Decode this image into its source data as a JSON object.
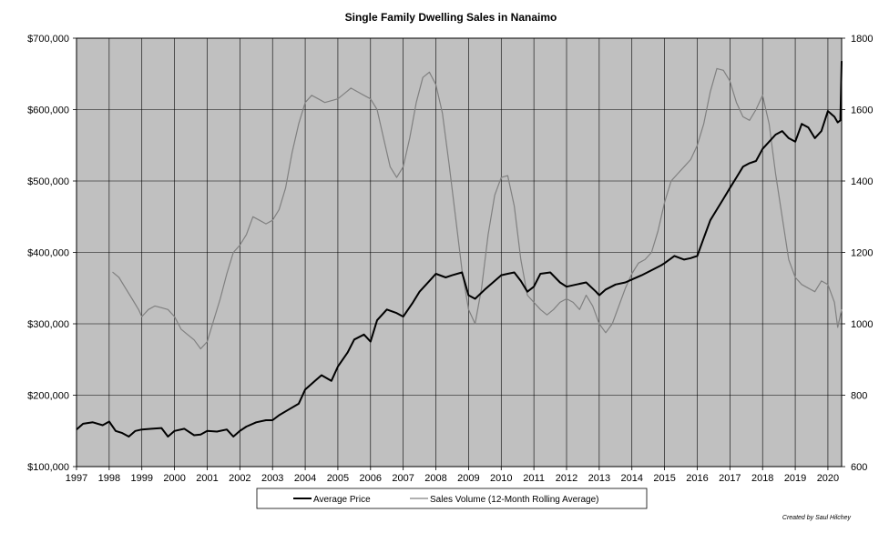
{
  "chart_data": {
    "type": "line",
    "title": "Single Family Dwelling Sales in Nanaimo",
    "credit": "Created by Saul Hilchey",
    "x_categories": [
      "1997",
      "1998",
      "1999",
      "2000",
      "2001",
      "2002",
      "2003",
      "2004",
      "2005",
      "2006",
      "2007",
      "2008",
      "2009",
      "2010",
      "2011",
      "2012",
      "2013",
      "2014",
      "2015",
      "2016",
      "2017",
      "2018",
      "2019",
      "2020"
    ],
    "x_range": [
      1997.0,
      2020.42
    ],
    "y_left": {
      "range": [
        100000,
        700000
      ],
      "ticks": [
        100000,
        200000,
        300000,
        400000,
        500000,
        600000,
        700000
      ],
      "tick_labels": [
        "$100,000",
        "$200,000",
        "$300,000",
        "$400,000",
        "$500,000",
        "$600,000",
        "$700,000"
      ]
    },
    "y_right": {
      "range": [
        600,
        1800
      ],
      "ticks": [
        600,
        800,
        1000,
        1200,
        1400,
        1600,
        1800
      ],
      "tick_labels": [
        "600",
        "800",
        "1000",
        "1200",
        "1400",
        "1600",
        "1800"
      ]
    },
    "grid": true,
    "plot_background": "#c0c0c0",
    "legend_placement": "bottom-center",
    "series": [
      {
        "name": "Average Price",
        "axis": "left",
        "color": "#000000",
        "points": [
          [
            1997.0,
            152000
          ],
          [
            1997.2,
            160000
          ],
          [
            1997.5,
            162000
          ],
          [
            1997.8,
            158000
          ],
          [
            1998.0,
            163000
          ],
          [
            1998.2,
            150000
          ],
          [
            1998.4,
            147000
          ],
          [
            1998.6,
            142000
          ],
          [
            1998.8,
            150000
          ],
          [
            1999.0,
            152000
          ],
          [
            1999.3,
            153000
          ],
          [
            1999.6,
            154000
          ],
          [
            1999.8,
            142000
          ],
          [
            2000.0,
            150000
          ],
          [
            2000.3,
            153000
          ],
          [
            2000.6,
            144000
          ],
          [
            2000.8,
            145000
          ],
          [
            2001.0,
            150000
          ],
          [
            2001.3,
            149000
          ],
          [
            2001.6,
            152000
          ],
          [
            2001.8,
            142000
          ],
          [
            2002.0,
            150000
          ],
          [
            2002.2,
            156000
          ],
          [
            2002.5,
            162000
          ],
          [
            2002.8,
            165000
          ],
          [
            2003.0,
            165000
          ],
          [
            2003.2,
            172000
          ],
          [
            2003.5,
            180000
          ],
          [
            2003.8,
            188000
          ],
          [
            2004.0,
            208000
          ],
          [
            2004.3,
            220000
          ],
          [
            2004.5,
            228000
          ],
          [
            2004.8,
            220000
          ],
          [
            2005.0,
            240000
          ],
          [
            2005.3,
            260000
          ],
          [
            2005.5,
            278000
          ],
          [
            2005.8,
            285000
          ],
          [
            2006.0,
            275000
          ],
          [
            2006.2,
            305000
          ],
          [
            2006.5,
            320000
          ],
          [
            2006.8,
            315000
          ],
          [
            2007.0,
            310000
          ],
          [
            2007.3,
            330000
          ],
          [
            2007.5,
            345000
          ],
          [
            2007.8,
            360000
          ],
          [
            2008.0,
            370000
          ],
          [
            2008.3,
            365000
          ],
          [
            2008.5,
            368000
          ],
          [
            2008.8,
            372000
          ],
          [
            2009.0,
            340000
          ],
          [
            2009.2,
            335000
          ],
          [
            2009.5,
            348000
          ],
          [
            2009.8,
            360000
          ],
          [
            2010.0,
            368000
          ],
          [
            2010.2,
            370000
          ],
          [
            2010.4,
            372000
          ],
          [
            2010.6,
            360000
          ],
          [
            2010.8,
            345000
          ],
          [
            2011.0,
            352000
          ],
          [
            2011.2,
            370000
          ],
          [
            2011.5,
            372000
          ],
          [
            2011.8,
            358000
          ],
          [
            2012.0,
            352000
          ],
          [
            2012.3,
            355000
          ],
          [
            2012.6,
            358000
          ],
          [
            2012.9,
            345000
          ],
          [
            2013.0,
            340000
          ],
          [
            2013.2,
            348000
          ],
          [
            2013.5,
            355000
          ],
          [
            2013.8,
            358000
          ],
          [
            2014.0,
            362000
          ],
          [
            2014.3,
            368000
          ],
          [
            2014.6,
            375000
          ],
          [
            2014.9,
            382000
          ],
          [
            2015.0,
            385000
          ],
          [
            2015.3,
            395000
          ],
          [
            2015.6,
            390000
          ],
          [
            2015.8,
            392000
          ],
          [
            2016.0,
            395000
          ],
          [
            2016.2,
            420000
          ],
          [
            2016.4,
            445000
          ],
          [
            2016.6,
            460000
          ],
          [
            2016.8,
            475000
          ],
          [
            2017.0,
            490000
          ],
          [
            2017.2,
            505000
          ],
          [
            2017.4,
            520000
          ],
          [
            2017.6,
            525000
          ],
          [
            2017.8,
            528000
          ],
          [
            2018.0,
            545000
          ],
          [
            2018.2,
            555000
          ],
          [
            2018.4,
            565000
          ],
          [
            2018.6,
            570000
          ],
          [
            2018.8,
            560000
          ],
          [
            2019.0,
            555000
          ],
          [
            2019.2,
            580000
          ],
          [
            2019.4,
            575000
          ],
          [
            2019.6,
            560000
          ],
          [
            2019.8,
            570000
          ],
          [
            2020.0,
            598000
          ],
          [
            2020.2,
            590000
          ],
          [
            2020.3,
            582000
          ],
          [
            2020.38,
            585000
          ],
          [
            2020.42,
            668000
          ]
        ]
      },
      {
        "name": "Sales Volume (12-Month Rolling Average)",
        "axis": "right",
        "color": "#808080",
        "points": [
          [
            1998.1,
            1145
          ],
          [
            1998.3,
            1130
          ],
          [
            1998.5,
            1100
          ],
          [
            1998.7,
            1070
          ],
          [
            1998.9,
            1040
          ],
          [
            1999.0,
            1020
          ],
          [
            1999.2,
            1040
          ],
          [
            1999.4,
            1050
          ],
          [
            1999.6,
            1045
          ],
          [
            1999.8,
            1040
          ],
          [
            2000.0,
            1020
          ],
          [
            2000.2,
            985
          ],
          [
            2000.4,
            970
          ],
          [
            2000.6,
            955
          ],
          [
            2000.8,
            930
          ],
          [
            2001.0,
            950
          ],
          [
            2001.2,
            1010
          ],
          [
            2001.4,
            1070
          ],
          [
            2001.6,
            1140
          ],
          [
            2001.8,
            1200
          ],
          [
            2002.0,
            1220
          ],
          [
            2002.2,
            1250
          ],
          [
            2002.4,
            1300
          ],
          [
            2002.6,
            1290
          ],
          [
            2002.8,
            1280
          ],
          [
            2003.0,
            1290
          ],
          [
            2003.2,
            1320
          ],
          [
            2003.4,
            1380
          ],
          [
            2003.6,
            1480
          ],
          [
            2003.8,
            1560
          ],
          [
            2004.0,
            1620
          ],
          [
            2004.2,
            1640
          ],
          [
            2004.4,
            1630
          ],
          [
            2004.6,
            1620
          ],
          [
            2004.8,
            1625
          ],
          [
            2005.0,
            1630
          ],
          [
            2005.2,
            1645
          ],
          [
            2005.4,
            1660
          ],
          [
            2005.6,
            1650
          ],
          [
            2005.8,
            1640
          ],
          [
            2006.0,
            1630
          ],
          [
            2006.2,
            1600
          ],
          [
            2006.4,
            1520
          ],
          [
            2006.6,
            1440
          ],
          [
            2006.8,
            1410
          ],
          [
            2007.0,
            1440
          ],
          [
            2007.2,
            1520
          ],
          [
            2007.4,
            1620
          ],
          [
            2007.6,
            1690
          ],
          [
            2007.8,
            1705
          ],
          [
            2008.0,
            1670
          ],
          [
            2008.2,
            1590
          ],
          [
            2008.4,
            1450
          ],
          [
            2008.6,
            1300
          ],
          [
            2008.8,
            1150
          ],
          [
            2009.0,
            1040
          ],
          [
            2009.2,
            1000
          ],
          [
            2009.4,
            1100
          ],
          [
            2009.6,
            1250
          ],
          [
            2009.8,
            1360
          ],
          [
            2010.0,
            1410
          ],
          [
            2010.2,
            1415
          ],
          [
            2010.4,
            1330
          ],
          [
            2010.6,
            1180
          ],
          [
            2010.8,
            1080
          ],
          [
            2011.0,
            1060
          ],
          [
            2011.2,
            1040
          ],
          [
            2011.4,
            1025
          ],
          [
            2011.6,
            1040
          ],
          [
            2011.8,
            1060
          ],
          [
            2012.0,
            1070
          ],
          [
            2012.2,
            1060
          ],
          [
            2012.4,
            1040
          ],
          [
            2012.6,
            1080
          ],
          [
            2012.8,
            1050
          ],
          [
            2013.0,
            1000
          ],
          [
            2013.2,
            975
          ],
          [
            2013.4,
            1000
          ],
          [
            2013.6,
            1050
          ],
          [
            2013.8,
            1100
          ],
          [
            2014.0,
            1140
          ],
          [
            2014.2,
            1170
          ],
          [
            2014.4,
            1180
          ],
          [
            2014.6,
            1200
          ],
          [
            2014.8,
            1260
          ],
          [
            2015.0,
            1340
          ],
          [
            2015.2,
            1400
          ],
          [
            2015.4,
            1420
          ],
          [
            2015.6,
            1440
          ],
          [
            2015.8,
            1460
          ],
          [
            2016.0,
            1500
          ],
          [
            2016.2,
            1560
          ],
          [
            2016.4,
            1650
          ],
          [
            2016.6,
            1715
          ],
          [
            2016.8,
            1710
          ],
          [
            2017.0,
            1680
          ],
          [
            2017.2,
            1620
          ],
          [
            2017.4,
            1580
          ],
          [
            2017.6,
            1570
          ],
          [
            2017.8,
            1600
          ],
          [
            2018.0,
            1640
          ],
          [
            2018.2,
            1560
          ],
          [
            2018.4,
            1420
          ],
          [
            2018.6,
            1300
          ],
          [
            2018.8,
            1180
          ],
          [
            2019.0,
            1130
          ],
          [
            2019.2,
            1110
          ],
          [
            2019.4,
            1100
          ],
          [
            2019.6,
            1090
          ],
          [
            2019.8,
            1120
          ],
          [
            2020.0,
            1110
          ],
          [
            2020.2,
            1060
          ],
          [
            2020.3,
            990
          ],
          [
            2020.42,
            1040
          ]
        ]
      }
    ]
  }
}
